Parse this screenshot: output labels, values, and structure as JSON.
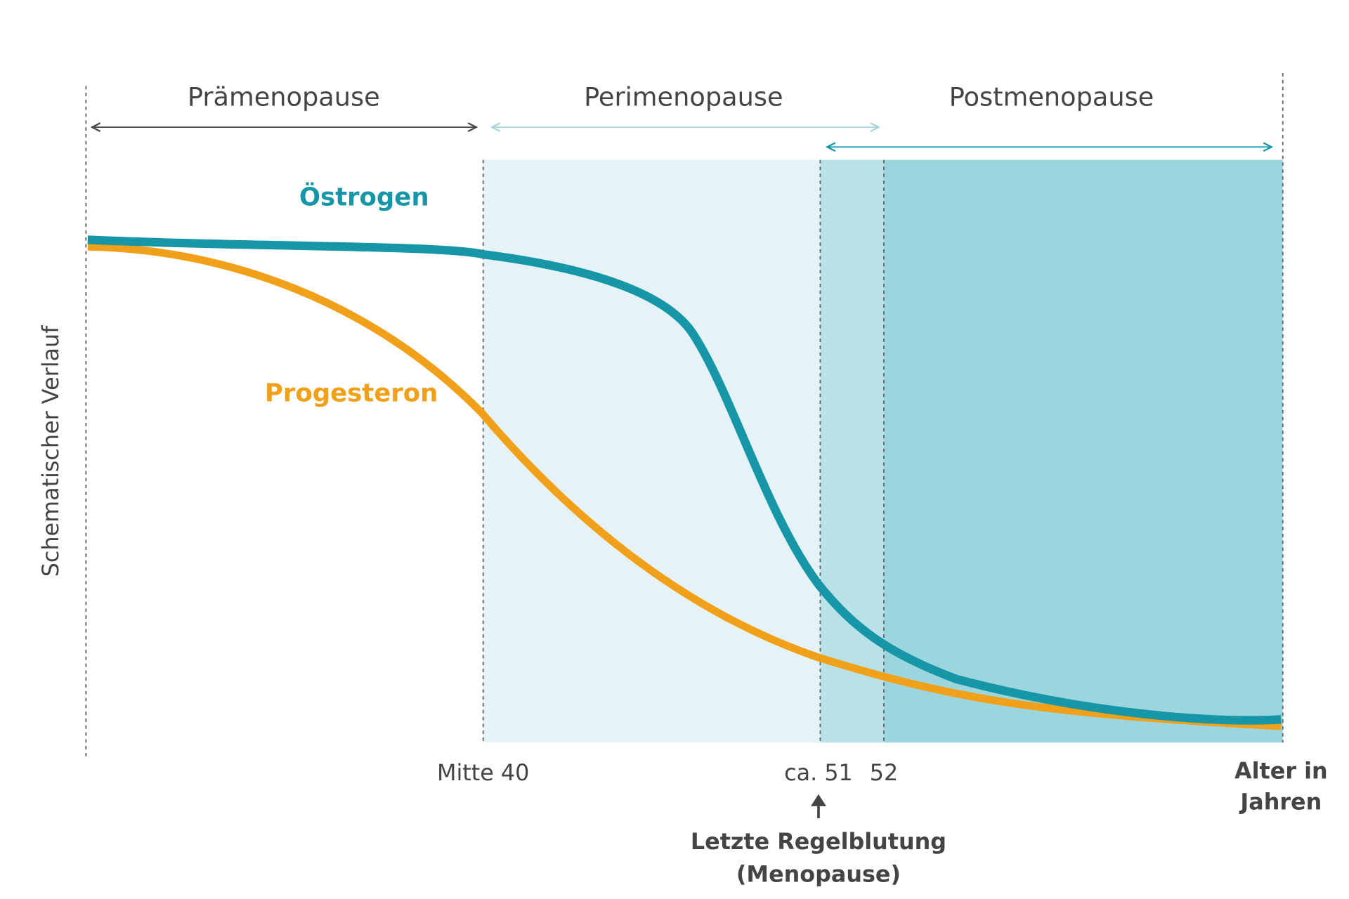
{
  "phases": [
    {
      "label": "Prämenopause"
    },
    {
      "label": "Perimenopause"
    },
    {
      "label": "Postmenopause"
    }
  ],
  "curves": [
    {
      "label": "Östrogen"
    },
    {
      "label": "Progesteron"
    }
  ],
  "y_axis_label": "Schematischer Verlauf",
  "x_markers": [
    "Mitte 40",
    "ca. 51",
    "52"
  ],
  "x_axis_label": [
    "Alter in",
    "Jahren"
  ],
  "annotation": [
    "Letzte Regelblutung",
    "(Menopause)"
  ]
}
